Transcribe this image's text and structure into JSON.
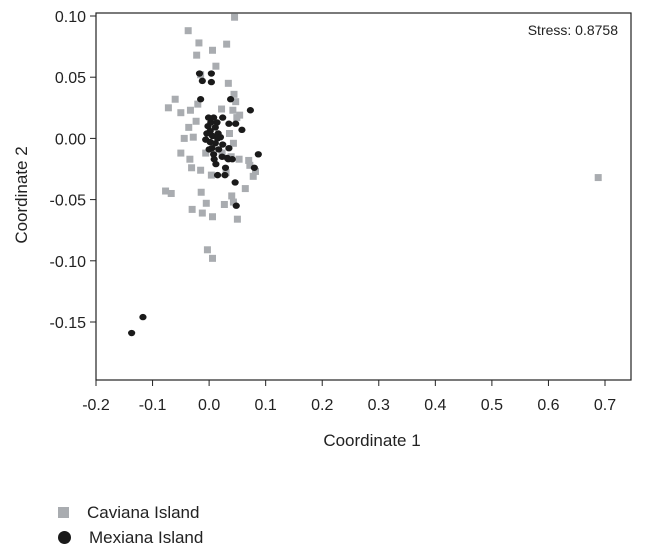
{
  "chart_data": {
    "type": "scatter",
    "xlabel": "Coordinate 1",
    "ylabel": "Coordinate 2",
    "xlim": [
      -0.2,
      0.7
    ],
    "ylim": [
      -0.2,
      0.1
    ],
    "xticks": [
      "-0.2",
      "-0.1",
      "0.0",
      "0.1",
      "0.2",
      "0.3",
      "0.4",
      "0.5",
      "0.6",
      "0.7"
    ],
    "xtick_values": [
      -0.2,
      -0.1,
      0.0,
      0.1,
      0.2,
      0.3,
      0.4,
      0.5,
      0.6,
      0.7
    ],
    "yticks": [
      "0.10",
      "0.05",
      "0.00",
      "-0.05",
      "-0.10",
      "-0.15"
    ],
    "ytick_values": [
      0.1,
      0.05,
      0.0,
      -0.05,
      -0.1,
      -0.15
    ],
    "annotation": "Stress: 0.8758",
    "legend_position": "bottom-left",
    "series": [
      {
        "name": "Caviana Island",
        "marker": "square",
        "color": "#a9acb0",
        "points": [
          [
            -0.037,
            0.088
          ],
          [
            0.045,
            0.099
          ],
          [
            -0.018,
            0.078
          ],
          [
            0.031,
            0.077
          ],
          [
            0.006,
            0.072
          ],
          [
            -0.022,
            0.068
          ],
          [
            0.012,
            0.059
          ],
          [
            -0.015,
            0.052
          ],
          [
            0.034,
            0.045
          ],
          [
            0.044,
            0.036
          ],
          [
            0.042,
            0.023
          ],
          [
            0.049,
            0.017
          ],
          [
            -0.06,
            0.032
          ],
          [
            -0.072,
            0.025
          ],
          [
            -0.05,
            0.021
          ],
          [
            -0.02,
            0.028
          ],
          [
            -0.033,
            0.023
          ],
          [
            0.022,
            0.024
          ],
          [
            0.047,
            0.03
          ],
          [
            -0.036,
            0.009
          ],
          [
            -0.028,
            0.001
          ],
          [
            -0.044,
            0.0
          ],
          [
            -0.05,
            -0.012
          ],
          [
            -0.034,
            -0.017
          ],
          [
            -0.031,
            -0.024
          ],
          [
            0.023,
            -0.012
          ],
          [
            0.043,
            -0.004
          ],
          [
            0.039,
            -0.015
          ],
          [
            0.053,
            -0.017
          ],
          [
            0.07,
            -0.018
          ],
          [
            0.072,
            -0.022
          ],
          [
            0.082,
            -0.027
          ],
          [
            -0.015,
            -0.026
          ],
          [
            0.03,
            -0.028
          ],
          [
            -0.006,
            -0.012
          ],
          [
            0.004,
            -0.03
          ],
          [
            0.064,
            -0.041
          ],
          [
            0.078,
            -0.031
          ],
          [
            -0.077,
            -0.043
          ],
          [
            -0.067,
            -0.045
          ],
          [
            0.04,
            -0.047
          ],
          [
            -0.014,
            -0.044
          ],
          [
            -0.005,
            -0.053
          ],
          [
            0.043,
            -0.052
          ],
          [
            -0.012,
            -0.061
          ],
          [
            -0.03,
            -0.058
          ],
          [
            0.006,
            -0.064
          ],
          [
            0.027,
            -0.054
          ],
          [
            0.05,
            -0.066
          ],
          [
            -0.003,
            -0.091
          ],
          [
            0.006,
            -0.098
          ],
          [
            0.688,
            -0.032
          ],
          [
            0.054,
            0.019
          ],
          [
            0.036,
            0.004
          ],
          [
            -0.023,
            0.014
          ]
        ]
      },
      {
        "name": "Mexiana Island",
        "marker": "circle",
        "color": "#1a1a1a",
        "points": [
          [
            -0.017,
            0.053
          ],
          [
            -0.012,
            0.047
          ],
          [
            0.004,
            0.053
          ],
          [
            0.004,
            0.046
          ],
          [
            -0.015,
            0.032
          ],
          [
            0.038,
            0.032
          ],
          [
            0.073,
            0.023
          ],
          [
            -0.001,
            0.017
          ],
          [
            0.008,
            0.017
          ],
          [
            0.024,
            0.017
          ],
          [
            0.047,
            0.012
          ],
          [
            0.035,
            0.012
          ],
          [
            0.058,
            0.007
          ],
          [
            -0.002,
            0.01
          ],
          [
            0.011,
            0.009
          ],
          [
            0.002,
            0.006
          ],
          [
            0.016,
            0.004
          ],
          [
            -0.004,
            0.004
          ],
          [
            0.006,
            0.002
          ],
          [
            0.02,
            0.001
          ],
          [
            0.015,
            0.0
          ],
          [
            -0.006,
            -0.001
          ],
          [
            0.002,
            -0.003
          ],
          [
            0.011,
            -0.004
          ],
          [
            0.024,
            -0.005
          ],
          [
            0.0,
            -0.009
          ],
          [
            0.017,
            -0.009
          ],
          [
            0.035,
            -0.008
          ],
          [
            0.008,
            -0.013
          ],
          [
            0.023,
            -0.015
          ],
          [
            0.032,
            -0.016
          ],
          [
            0.087,
            -0.013
          ],
          [
            0.08,
            -0.024
          ],
          [
            0.029,
            -0.024
          ],
          [
            0.046,
            -0.036
          ],
          [
            0.009,
            -0.017
          ],
          [
            0.012,
            -0.021
          ],
          [
            0.034,
            -0.017
          ],
          [
            0.048,
            -0.055
          ],
          [
            -0.117,
            -0.146
          ],
          [
            -0.137,
            -0.159
          ],
          [
            0.014,
            0.013
          ],
          [
            0.003,
            0.013
          ],
          [
            0.005,
            -0.008
          ],
          [
            0.015,
            -0.03
          ],
          [
            0.028,
            -0.03
          ],
          [
            0.041,
            -0.017
          ]
        ]
      }
    ]
  }
}
